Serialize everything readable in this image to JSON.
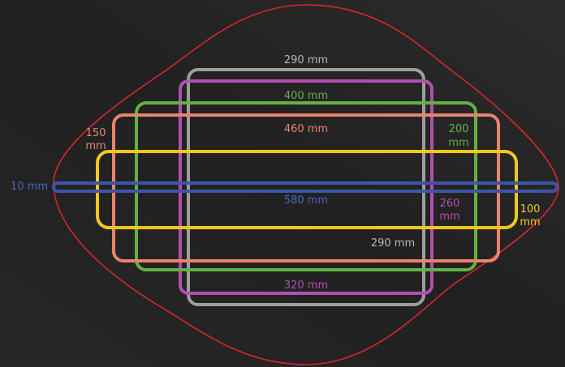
{
  "colors": {
    "background": "#232323",
    "outline": "#d8262b",
    "gray": "#9e9e9e",
    "magenta": "#b24fb0",
    "green": "#66b042",
    "salmon": "#e9836a",
    "yellow": "#f2c81a",
    "blue": "#3e55a8"
  },
  "shapes": [
    {
      "id": "gray",
      "label": "290 mm",
      "depth_label": "290 mm"
    },
    {
      "id": "magenta",
      "label": "320 mm",
      "depth_label": "260 mm"
    },
    {
      "id": "green",
      "label": "400 mm",
      "depth_label": "200 mm"
    },
    {
      "id": "salmon",
      "label": "460 mm",
      "depth_label": "150 mm"
    },
    {
      "id": "yellow",
      "label": "",
      "depth_label": "100 mm"
    },
    {
      "id": "blue",
      "label": "580 mm",
      "depth_label": "10 mm"
    }
  ],
  "labels": {
    "gray_top": "290 mm",
    "gray_side": "290 mm",
    "magenta_bottom": "320 mm",
    "magenta_side_line1": "260",
    "magenta_side_line2": "mm",
    "green_top": "400 mm",
    "green_side_line1": "200",
    "green_side_line2": "mm",
    "salmon_top": "460 mm",
    "salmon_side_line1": "150",
    "salmon_side_line2": "mm",
    "yellow_side_line1": "100",
    "yellow_side_line2": "mm",
    "blue_center": "580 mm",
    "blue_side": "10 mm"
  }
}
